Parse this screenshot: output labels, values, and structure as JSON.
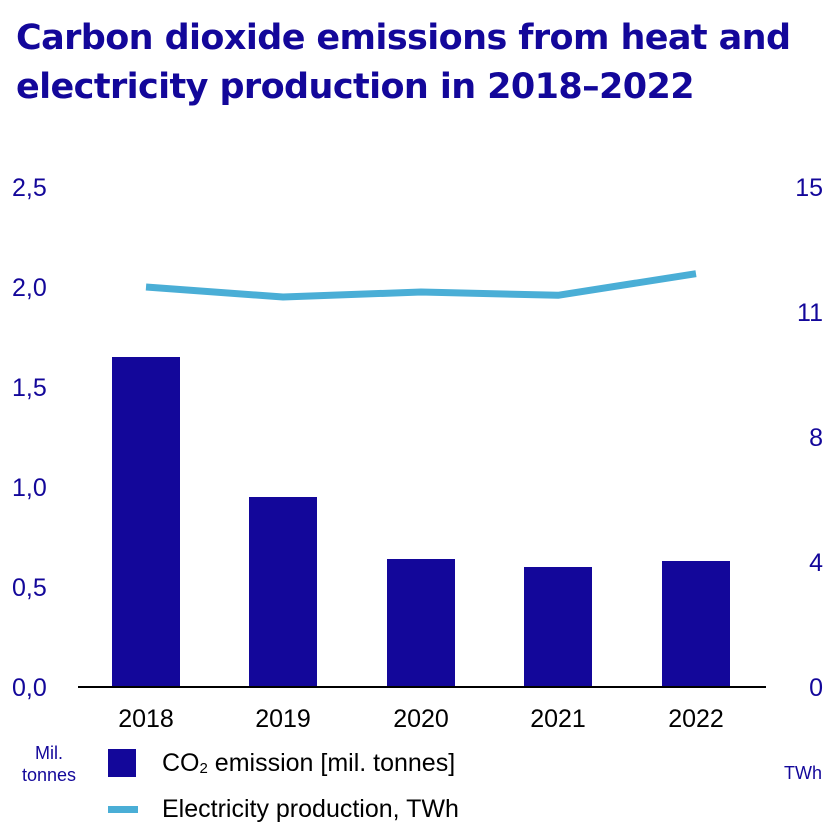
{
  "title": "Carbon dioxide emissions from heat and electricity production in 2018–2022",
  "chart_data": {
    "type": "bar",
    "categories": [
      "2018",
      "2019",
      "2020",
      "2021",
      "2022"
    ],
    "series": [
      {
        "name": "CO₂ emission [mil. tonnes]",
        "kind": "bar",
        "axis": "left",
        "values": [
          1.65,
          0.95,
          0.64,
          0.6,
          0.63
        ],
        "color": "#13079a"
      },
      {
        "name": "Electricity production, TWh",
        "kind": "line",
        "axis": "right",
        "values": [
          12.0,
          11.7,
          11.85,
          11.75,
          12.4
        ],
        "color": "#4aaed6"
      }
    ],
    "y_left": {
      "label_line1": "Mil.",
      "label_line2": "tonnes",
      "range": [
        0,
        2.5
      ],
      "ticks": [
        {
          "value": 0.0,
          "label": "0,0"
        },
        {
          "value": 0.5,
          "label": "0,5"
        },
        {
          "value": 1.0,
          "label": "1,0"
        },
        {
          "value": 1.5,
          "label": "1,5"
        },
        {
          "value": 2.0,
          "label": "2,0"
        },
        {
          "value": 2.5,
          "label": "2,5"
        }
      ]
    },
    "y_right": {
      "label": "TWh",
      "range": [
        0,
        15
      ],
      "ticks": [
        {
          "value": 0,
          "label": "0"
        },
        {
          "value": 4,
          "label": "4"
        },
        {
          "value": 8,
          "label": "8"
        },
        {
          "value": 11,
          "label": "11"
        },
        {
          "value": 15,
          "label": "15"
        }
      ]
    },
    "legend": [
      {
        "prefix": "CO",
        "sub": "2",
        "suffix": " emission [mil. tonnes]"
      },
      {
        "text": "Electricity production, TWh"
      }
    ],
    "grid": false,
    "legend_position": "bottom"
  }
}
